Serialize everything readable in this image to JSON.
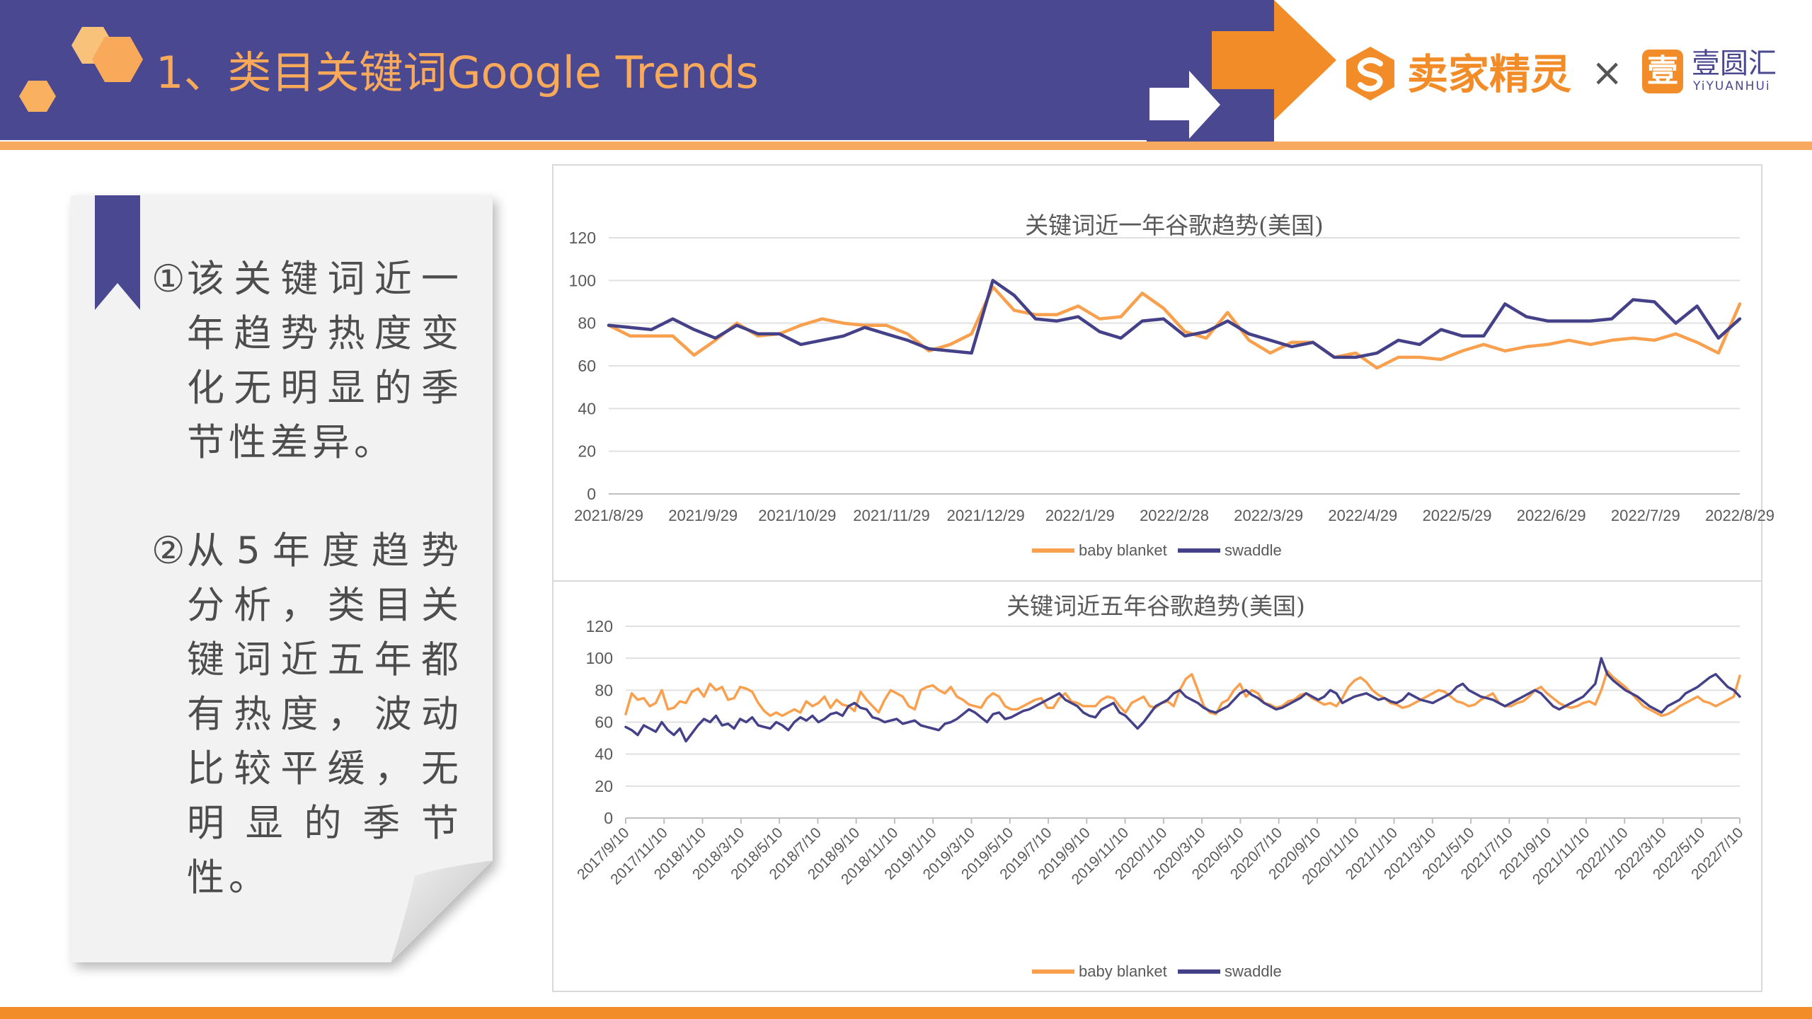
{
  "header": {
    "title": "1、类目关键词Google Trends",
    "brand_primary": "卖家精灵",
    "brand_separator": "×",
    "brand_secondary_mark": "壹",
    "brand_secondary": "壹圆汇",
    "brand_secondary_sub": "YiYUANHUi",
    "colors": {
      "band": "#4a4890",
      "accent": "#f28c28",
      "title": "#f9a95a"
    }
  },
  "notes": {
    "item1": {
      "num": "①",
      "text": "该关键词近一年趋势热度变化无明显的季节性差异。"
    },
    "item2": {
      "num": "②",
      "text": "从5年度趋势分析，类目关键词近五年都有热度，波动比较平缓，无明显的季节性。"
    }
  },
  "chart_data": [
    {
      "type": "line",
      "title": "关键词近一年谷歌趋势(美国)",
      "xlabel": "",
      "ylabel": "",
      "ylim": [
        0,
        120
      ],
      "yticks": [
        "0",
        "20",
        "40",
        "60",
        "80",
        "100",
        "120"
      ],
      "x_tick_labels": [
        "2021/8/29",
        "2021/9/29",
        "2021/10/29",
        "2021/11/29",
        "2021/12/29",
        "2022/1/29",
        "2022/2/28",
        "2022/3/29",
        "2022/4/29",
        "2022/5/29",
        "2022/6/29",
        "2022/7/29",
        "2022/8/29"
      ],
      "legend_position": "bottom",
      "grid": true,
      "series": [
        {
          "name": "baby blanket",
          "color": "#f9a04f",
          "values": [
            79,
            74,
            74,
            74,
            65,
            72,
            80,
            74,
            75,
            79,
            82,
            80,
            79,
            79,
            75,
            67,
            70,
            75,
            97,
            86,
            84,
            84,
            88,
            82,
            83,
            94,
            87,
            76,
            73,
            85,
            72,
            66,
            71,
            71,
            64,
            66,
            59,
            64,
            64,
            63,
            67,
            70,
            67,
            69,
            70,
            72,
            70,
            72,
            73,
            72,
            75,
            71,
            66,
            89
          ]
        },
        {
          "name": "swaddle",
          "color": "#454189",
          "values": [
            79,
            78,
            77,
            82,
            77,
            73,
            79,
            75,
            75,
            70,
            72,
            74,
            78,
            75,
            72,
            68,
            67,
            66,
            100,
            93,
            82,
            81,
            83,
            76,
            73,
            81,
            82,
            74,
            76,
            81,
            75,
            72,
            69,
            71,
            64,
            64,
            66,
            72,
            70,
            77,
            74,
            74,
            89,
            83,
            81,
            81,
            81,
            82,
            91,
            90,
            80,
            88,
            73,
            82
          ]
        }
      ]
    },
    {
      "type": "line",
      "title": "关键词近五年谷歌趋势(美国)",
      "xlabel": "",
      "ylabel": "",
      "ylim": [
        0,
        120
      ],
      "yticks": [
        "0",
        "20",
        "40",
        "60",
        "80",
        "100",
        "120"
      ],
      "x_tick_labels": [
        "2017/9/10",
        "2017/11/10",
        "2018/1/10",
        "2018/3/10",
        "2018/5/10",
        "2018/7/10",
        "2018/9/10",
        "2018/11/10",
        "2019/1/10",
        "2019/3/10",
        "2019/5/10",
        "2019/7/10",
        "2019/9/10",
        "2019/11/10",
        "2020/1/10",
        "2020/3/10",
        "2020/5/10",
        "2020/7/10",
        "2020/9/10",
        "2020/11/10",
        "2021/1/10",
        "2021/3/10",
        "2021/5/10",
        "2021/7/10",
        "2021/9/10",
        "2021/11/10",
        "2022/1/10",
        "2022/3/10",
        "2022/5/10",
        "2022/7/10"
      ],
      "legend_position": "bottom",
      "grid": true,
      "series": [
        {
          "name": "baby blanket",
          "color": "#f9a04f",
          "values": [
            65,
            78,
            74,
            75,
            70,
            72,
            80,
            68,
            69,
            73,
            72,
            79,
            81,
            76,
            84,
            80,
            82,
            74,
            75,
            82,
            81,
            79,
            72,
            67,
            64,
            66,
            64,
            66,
            68,
            66,
            73,
            70,
            72,
            76,
            69,
            74,
            71,
            70,
            67,
            79,
            74,
            70,
            66,
            74,
            80,
            78,
            76,
            70,
            68,
            80,
            82,
            83,
            80,
            78,
            82,
            76,
            74,
            71,
            70,
            69,
            75,
            78,
            76,
            70,
            68,
            68,
            70,
            72,
            74,
            75,
            69,
            69,
            75,
            78,
            73,
            72,
            70,
            70,
            70,
            74,
            76,
            75,
            70,
            66,
            72,
            74,
            76,
            70,
            69,
            72,
            73,
            70,
            80,
            87,
            90,
            80,
            70,
            66,
            65,
            72,
            74,
            80,
            84,
            76,
            80,
            78,
            72,
            71,
            69,
            70,
            73,
            74,
            77,
            78,
            75,
            73,
            71,
            72,
            70,
            75,
            82,
            86,
            88,
            85,
            80,
            77,
            75,
            72,
            71,
            69,
            70,
            72,
            74,
            76,
            78,
            80,
            79,
            76,
            73,
            72,
            70,
            71,
            74,
            76,
            78,
            72,
            70,
            70,
            72,
            73,
            76,
            80,
            82,
            78,
            75,
            72,
            70,
            69,
            70,
            72,
            73,
            71,
            80,
            92,
            88,
            85,
            82,
            78,
            74,
            70,
            68,
            66,
            64,
            65,
            67,
            70,
            72,
            74,
            76,
            73,
            72,
            70,
            72,
            74,
            76,
            89
          ]
        },
        {
          "name": "swaddle",
          "color": "#454189",
          "values": [
            57,
            55,
            52,
            58,
            56,
            54,
            60,
            55,
            52,
            56,
            48,
            53,
            58,
            62,
            60,
            64,
            58,
            59,
            56,
            62,
            60,
            63,
            58,
            57,
            56,
            60,
            58,
            55,
            60,
            63,
            61,
            64,
            60,
            62,
            65,
            66,
            64,
            70,
            72,
            69,
            68,
            63,
            62,
            60,
            61,
            62,
            59,
            60,
            61,
            58,
            57,
            56,
            55,
            59,
            60,
            62,
            65,
            68,
            66,
            63,
            60,
            65,
            66,
            62,
            63,
            65,
            67,
            68,
            70,
            72,
            74,
            76,
            78,
            74,
            72,
            70,
            66,
            64,
            63,
            68,
            70,
            72,
            66,
            64,
            60,
            56,
            60,
            65,
            70,
            72,
            74,
            78,
            80,
            76,
            74,
            72,
            69,
            67,
            66,
            68,
            70,
            74,
            78,
            80,
            77,
            75,
            72,
            70,
            68,
            69,
            71,
            73,
            75,
            78,
            76,
            74,
            76,
            80,
            78,
            72,
            74,
            76,
            77,
            78,
            76,
            74,
            75,
            73,
            72,
            74,
            78,
            76,
            74,
            73,
            72,
            74,
            76,
            78,
            82,
            84,
            80,
            78,
            76,
            75,
            74,
            72,
            70,
            72,
            74,
            76,
            78,
            80,
            78,
            74,
            70,
            68,
            70,
            72,
            74,
            76,
            80,
            84,
            100,
            90,
            86,
            83,
            80,
            78,
            76,
            73,
            70,
            68,
            66,
            70,
            72,
            74,
            78,
            80,
            82,
            85,
            88,
            90,
            86,
            82,
            80,
            76
          ]
        }
      ]
    }
  ]
}
